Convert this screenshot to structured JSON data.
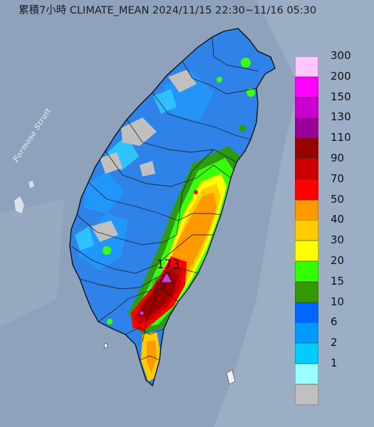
{
  "title": "累積7小時 CLIMATE_MEAN 2024/11/15 22:30~11/16 05:30",
  "strait_label": "Formosa Strait",
  "max_station": {
    "value": "173",
    "marker_icon": "purple-triangle-icon"
  },
  "legend": [
    {
      "label": "300",
      "color": "#ffc6fe"
    },
    {
      "label": "200",
      "color": "#ff00ff"
    },
    {
      "label": "150",
      "color": "#cc00cc"
    },
    {
      "label": "130",
      "color": "#990099"
    },
    {
      "label": "110",
      "color": "#990000"
    },
    {
      "label": "90",
      "color": "#cc0000"
    },
    {
      "label": "70",
      "color": "#ff0000"
    },
    {
      "label": "50",
      "color": "#ff9900"
    },
    {
      "label": "40",
      "color": "#ffcc00"
    },
    {
      "label": "30",
      "color": "#ffff00"
    },
    {
      "label": "20",
      "color": "#33ff00"
    },
    {
      "label": "15",
      "color": "#339900"
    },
    {
      "label": "10",
      "color": "#0066ff"
    },
    {
      "label": "6",
      "color": "#0099ff"
    },
    {
      "label": "2",
      "color": "#00ccff"
    },
    {
      "label": "1",
      "color": "#99ffff"
    },
    {
      "label": "",
      "color": "#c0c0c0"
    }
  ]
}
